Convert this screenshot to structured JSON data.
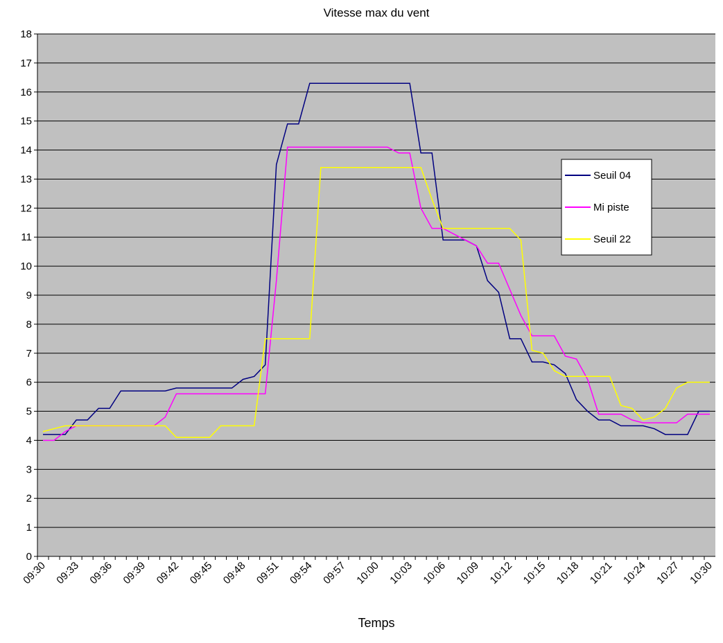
{
  "chart_data": {
    "type": "line",
    "title": "Vitesse max du vent",
    "x_label": "Temps",
    "categories": [
      "09:30",
      null,
      null,
      "09:33",
      null,
      null,
      "09:36",
      null,
      null,
      "09:39",
      null,
      null,
      "09:42",
      null,
      null,
      "09:45",
      null,
      null,
      "09:48",
      null,
      null,
      "09:51",
      null,
      null,
      "09:54",
      null,
      null,
      "09:57",
      null,
      null,
      "10:00",
      null,
      null,
      "10:03",
      null,
      null,
      "10:06",
      null,
      null,
      "10:09",
      null,
      null,
      "10:12",
      null,
      null,
      "10:15",
      null,
      null,
      "10:18",
      null,
      null,
      "10:21",
      null,
      null,
      "10:24",
      null,
      null,
      "10:27",
      null,
      null,
      "10:30"
    ],
    "series": [
      {
        "name": "Seuil 04",
        "color": "#000080",
        "values": [
          4.2,
          4.2,
          4.2,
          4.7,
          4.7,
          5.1,
          5.1,
          5.7,
          5.7,
          5.7,
          5.7,
          5.7,
          5.8,
          5.8,
          5.8,
          5.8,
          5.8,
          5.8,
          6.1,
          6.2,
          6.6,
          13.5,
          14.9,
          14.9,
          16.3,
          16.3,
          16.3,
          16.3,
          16.3,
          16.3,
          16.3,
          16.3,
          16.3,
          16.3,
          13.9,
          13.9,
          10.9,
          10.9,
          10.9,
          10.7,
          9.5,
          9.1,
          7.5,
          7.5,
          6.7,
          6.7,
          6.6,
          6.3,
          5.4,
          5.0,
          4.7,
          4.7,
          4.5,
          4.5,
          4.5,
          4.4,
          4.2,
          4.2,
          4.2,
          5.0,
          5.0
        ]
      },
      {
        "name": "Mi piste",
        "color": "#ff00ff",
        "values": [
          4.0,
          4.0,
          4.3,
          4.5,
          4.5,
          4.5,
          4.5,
          4.5,
          4.5,
          4.5,
          4.5,
          4.8,
          5.6,
          5.6,
          5.6,
          5.6,
          5.6,
          5.6,
          5.6,
          5.6,
          5.6,
          9.5,
          14.1,
          14.1,
          14.1,
          14.1,
          14.1,
          14.1,
          14.1,
          14.1,
          14.1,
          14.1,
          13.9,
          13.9,
          12.0,
          11.3,
          11.3,
          11.1,
          10.9,
          10.7,
          10.1,
          10.1,
          9.2,
          8.3,
          7.6,
          7.6,
          7.6,
          6.9,
          6.8,
          6.1,
          4.9,
          4.9,
          4.9,
          4.7,
          4.6,
          4.6,
          4.6,
          4.6,
          4.9,
          4.9,
          4.9
        ]
      },
      {
        "name": "Seuil 22",
        "color": "#ffff00",
        "values": [
          4.3,
          4.4,
          4.5,
          4.5,
          4.5,
          4.5,
          4.5,
          4.5,
          4.5,
          4.5,
          4.5,
          4.5,
          4.1,
          4.1,
          4.1,
          4.1,
          4.5,
          4.5,
          4.5,
          4.5,
          7.5,
          7.5,
          7.5,
          7.5,
          7.5,
          13.4,
          13.4,
          13.4,
          13.4,
          13.4,
          13.4,
          13.4,
          13.4,
          13.4,
          13.4,
          12.3,
          11.3,
          11.3,
          11.3,
          11.3,
          11.3,
          11.3,
          11.3,
          10.9,
          7.1,
          7.0,
          6.4,
          6.2,
          6.2,
          6.2,
          6.2,
          6.2,
          5.2,
          5.1,
          4.7,
          4.8,
          5.1,
          5.8,
          6.0,
          6.0,
          6.0
        ]
      }
    ],
    "ylim": [
      0,
      18
    ],
    "yticks": [
      0,
      1,
      2,
      3,
      4,
      5,
      6,
      7,
      8,
      9,
      10,
      11,
      12,
      13,
      14,
      15,
      16,
      17,
      18
    ],
    "grid": true,
    "plot_background": "#c0c0c0",
    "legend": "right"
  }
}
